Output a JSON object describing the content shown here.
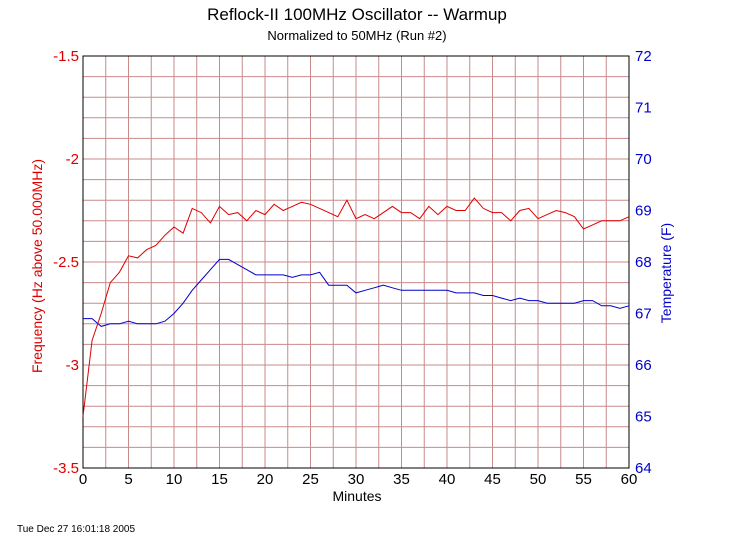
{
  "chart_data": {
    "type": "line",
    "title": "Reflock-II 100MHz Oscillator -- Warmup",
    "subtitle": "Normalized to 50MHz (Run #2)",
    "xlabel": "Minutes",
    "ylabel_left": "Frequency (Hz above 50.000MHz)",
    "ylabel_right": "Temperature (F)",
    "xlim": [
      0,
      60
    ],
    "ylim_left": [
      -3.5,
      -1.5
    ],
    "ylim_right": [
      64,
      72
    ],
    "x_ticks": [
      "0",
      "5",
      "10",
      "15",
      "20",
      "25",
      "30",
      "35",
      "40",
      "45",
      "50",
      "55",
      "60"
    ],
    "y_left_ticks": [
      "-1.5",
      "-2",
      "-2.5",
      "-3",
      "-3.5"
    ],
    "y_right_ticks": [
      "72",
      "71",
      "70",
      "69",
      "68",
      "67",
      "66",
      "65",
      "64"
    ],
    "grid": true,
    "colors": {
      "frequency": "#dd0000",
      "temperature": "#0000cc",
      "grid": "#c98a8a"
    },
    "series": [
      {
        "axis": "left",
        "x": [
          0,
          1,
          2,
          3,
          4,
          5,
          6,
          7,
          8,
          9,
          10,
          11,
          12,
          13,
          14,
          15,
          16,
          17,
          18,
          19,
          20,
          21,
          22,
          23,
          24,
          25,
          26,
          27,
          28,
          29,
          30,
          31,
          32,
          33,
          34,
          35,
          36,
          37,
          38,
          39,
          40,
          41,
          42,
          43,
          44,
          45,
          46,
          47,
          48,
          49,
          50,
          51,
          52,
          53,
          54,
          55,
          56,
          57,
          58,
          59,
          60
        ],
        "values": [
          -3.25,
          -2.88,
          -2.75,
          -2.6,
          -2.55,
          -2.47,
          -2.48,
          -2.44,
          -2.42,
          -2.37,
          -2.33,
          -2.36,
          -2.24,
          -2.26,
          -2.31,
          -2.23,
          -2.27,
          -2.26,
          -2.3,
          -2.25,
          -2.27,
          -2.22,
          -2.25,
          -2.23,
          -2.21,
          -2.22,
          -2.24,
          -2.26,
          -2.28,
          -2.2,
          -2.29,
          -2.27,
          -2.29,
          -2.26,
          -2.23,
          -2.26,
          -2.26,
          -2.29,
          -2.23,
          -2.27,
          -2.23,
          -2.25,
          -2.25,
          -2.19,
          -2.24,
          -2.26,
          -2.26,
          -2.3,
          -2.25,
          -2.24,
          -2.29,
          -2.27,
          -2.25,
          -2.26,
          -2.28,
          -2.34,
          -2.32,
          -2.3,
          -2.3,
          -2.3,
          -2.28
        ]
      },
      {
        "axis": "right",
        "x": [
          0,
          1,
          2,
          3,
          4,
          5,
          6,
          7,
          8,
          9,
          10,
          11,
          12,
          13,
          14,
          15,
          16,
          17,
          18,
          19,
          20,
          21,
          22,
          23,
          24,
          25,
          26,
          27,
          28,
          29,
          30,
          31,
          32,
          33,
          34,
          35,
          36,
          37,
          38,
          39,
          40,
          41,
          42,
          43,
          44,
          45,
          46,
          47,
          48,
          49,
          50,
          51,
          52,
          53,
          54,
          55,
          56,
          57,
          58,
          59,
          60
        ],
        "values": [
          66.9,
          66.9,
          66.75,
          66.8,
          66.8,
          66.85,
          66.8,
          66.8,
          66.8,
          66.85,
          67.0,
          67.2,
          67.45,
          67.65,
          67.85,
          68.05,
          68.05,
          67.95,
          67.85,
          67.75,
          67.75,
          67.75,
          67.75,
          67.7,
          67.75,
          67.75,
          67.8,
          67.55,
          67.55,
          67.55,
          67.4,
          67.45,
          67.5,
          67.55,
          67.5,
          67.45,
          67.45,
          67.45,
          67.45,
          67.45,
          67.45,
          67.4,
          67.4,
          67.4,
          67.35,
          67.35,
          67.3,
          67.25,
          67.3,
          67.25,
          67.25,
          67.2,
          67.2,
          67.2,
          67.2,
          67.25,
          67.25,
          67.15,
          67.15,
          67.1,
          67.15
        ]
      }
    ]
  },
  "footer": {
    "timestamp": "Tue Dec 27 16:01:18 2005"
  }
}
